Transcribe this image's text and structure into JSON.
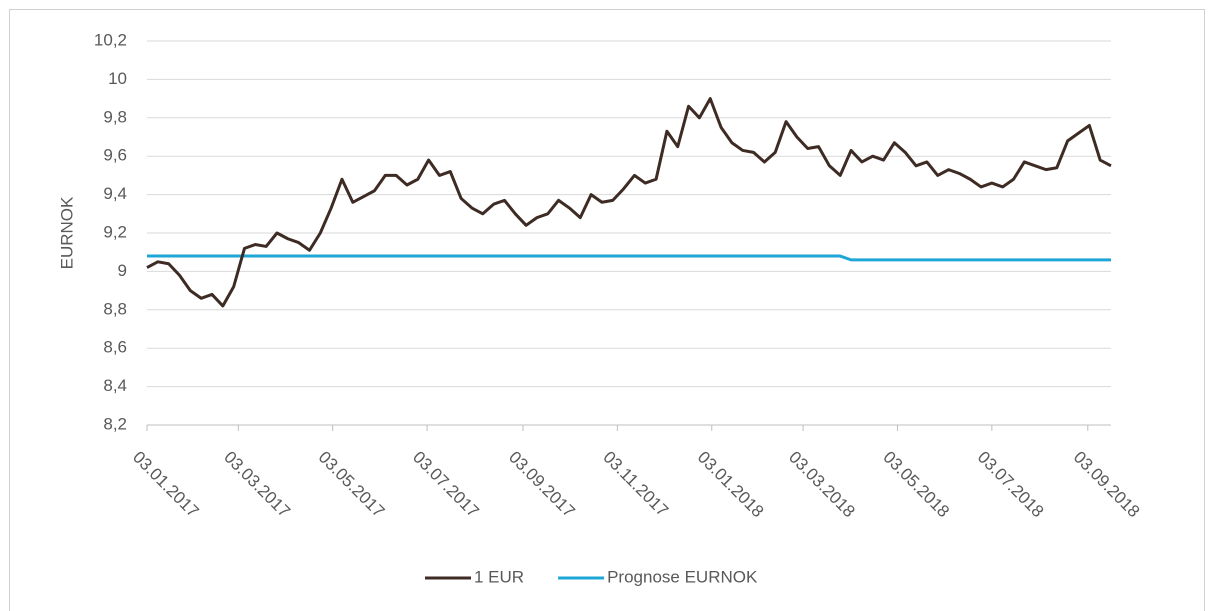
{
  "chart_data": {
    "type": "line",
    "y_label": "EURNOK",
    "x": [
      "2017-01-03",
      "2017-01-10",
      "2017-01-17",
      "2017-01-24",
      "2017-01-31",
      "2017-02-07",
      "2017-02-14",
      "2017-02-21",
      "2017-02-28",
      "2017-03-07",
      "2017-03-14",
      "2017-03-21",
      "2017-03-28",
      "2017-04-04",
      "2017-04-11",
      "2017-04-18",
      "2017-04-25",
      "2017-05-02",
      "2017-05-09",
      "2017-05-16",
      "2017-05-23",
      "2017-05-30",
      "2017-06-06",
      "2017-06-13",
      "2017-06-20",
      "2017-06-27",
      "2017-07-04",
      "2017-07-11",
      "2017-07-18",
      "2017-07-25",
      "2017-08-01",
      "2017-08-08",
      "2017-08-15",
      "2017-08-22",
      "2017-08-29",
      "2017-09-05",
      "2017-09-12",
      "2017-09-19",
      "2017-09-26",
      "2017-10-03",
      "2017-10-10",
      "2017-10-17",
      "2017-10-24",
      "2017-10-31",
      "2017-11-07",
      "2017-11-14",
      "2017-11-21",
      "2017-11-28",
      "2017-12-05",
      "2017-12-12",
      "2017-12-19",
      "2017-12-26",
      "2018-01-02",
      "2018-01-09",
      "2018-01-16",
      "2018-01-23",
      "2018-01-30",
      "2018-02-06",
      "2018-02-13",
      "2018-02-20",
      "2018-02-27",
      "2018-03-06",
      "2018-03-13",
      "2018-03-20",
      "2018-03-27",
      "2018-04-03",
      "2018-04-10",
      "2018-04-17",
      "2018-04-24",
      "2018-05-01",
      "2018-05-08",
      "2018-05-15",
      "2018-05-22",
      "2018-05-29",
      "2018-06-05",
      "2018-06-12",
      "2018-06-19",
      "2018-06-26",
      "2018-07-03",
      "2018-07-10",
      "2018-07-17",
      "2018-07-24",
      "2018-07-31",
      "2018-08-07",
      "2018-08-14",
      "2018-08-21",
      "2018-08-28",
      "2018-09-04",
      "2018-09-11",
      "2018-09-18"
    ],
    "series": [
      {
        "name": "1 EUR",
        "color": "#3d2b24",
        "values": [
          9.02,
          9.05,
          9.04,
          8.98,
          8.9,
          8.86,
          8.88,
          8.82,
          8.92,
          9.12,
          9.14,
          9.13,
          9.2,
          9.17,
          9.15,
          9.11,
          9.2,
          9.33,
          9.48,
          9.36,
          9.39,
          9.42,
          9.5,
          9.5,
          9.45,
          9.48,
          9.58,
          9.5,
          9.52,
          9.38,
          9.33,
          9.3,
          9.35,
          9.37,
          9.3,
          9.24,
          9.28,
          9.3,
          9.37,
          9.33,
          9.28,
          9.4,
          9.36,
          9.37,
          9.43,
          9.5,
          9.46,
          9.48,
          9.73,
          9.65,
          9.86,
          9.8,
          9.9,
          9.75,
          9.67,
          9.63,
          9.62,
          9.57,
          9.62,
          9.78,
          9.7,
          9.64,
          9.65,
          9.55,
          9.5,
          9.63,
          9.57,
          9.6,
          9.58,
          9.67,
          9.62,
          9.55,
          9.57,
          9.5,
          9.53,
          9.51,
          9.48,
          9.44,
          9.46,
          9.44,
          9.48,
          9.57,
          9.55,
          9.53,
          9.54,
          9.68,
          9.72,
          9.76,
          9.58,
          9.55
        ]
      },
      {
        "name": "Prognose EURNOK",
        "color": "#1ea7d6",
        "values": [
          9.08,
          9.08,
          9.08,
          9.08,
          9.08,
          9.08,
          9.08,
          9.08,
          9.08,
          9.08,
          9.08,
          9.08,
          9.08,
          9.08,
          9.08,
          9.08,
          9.08,
          9.08,
          9.08,
          9.08,
          9.08,
          9.08,
          9.08,
          9.08,
          9.08,
          9.08,
          9.08,
          9.08,
          9.08,
          9.08,
          9.08,
          9.08,
          9.08,
          9.08,
          9.08,
          9.08,
          9.08,
          9.08,
          9.08,
          9.08,
          9.08,
          9.08,
          9.08,
          9.08,
          9.08,
          9.08,
          9.08,
          9.08,
          9.08,
          9.08,
          9.08,
          9.08,
          9.08,
          9.08,
          9.08,
          9.08,
          9.08,
          9.08,
          9.08,
          9.08,
          9.08,
          9.08,
          9.08,
          9.08,
          9.08,
          9.06,
          9.06,
          9.06,
          9.06,
          9.06,
          9.06,
          9.06,
          9.06,
          9.06,
          9.06,
          9.06,
          9.06,
          9.06,
          9.06,
          9.06,
          9.06,
          9.06,
          9.06,
          9.06,
          9.06,
          9.06,
          9.06,
          9.06,
          9.06,
          9.06
        ]
      }
    ],
    "xlim": [
      "2017-01-03",
      "2018-09-18"
    ],
    "xticks": [
      {
        "value": "2017-01-03",
        "label": "03.01.2017"
      },
      {
        "value": "2017-03-03",
        "label": "03.03.2017"
      },
      {
        "value": "2017-05-03",
        "label": "03.05.2017"
      },
      {
        "value": "2017-07-03",
        "label": "03.07.2017"
      },
      {
        "value": "2017-09-03",
        "label": "03.09.2017"
      },
      {
        "value": "2017-11-03",
        "label": "03.11.2017"
      },
      {
        "value": "2018-01-03",
        "label": "03.01.2018"
      },
      {
        "value": "2018-03-03",
        "label": "03.03.2018"
      },
      {
        "value": "2018-05-03",
        "label": "03.05.2018"
      },
      {
        "value": "2018-07-03",
        "label": "03.07.2018"
      },
      {
        "value": "2018-09-03",
        "label": "03.09.2018"
      }
    ],
    "ylim": [
      8.2,
      10.2
    ],
    "yticks": [
      {
        "value": 8.2,
        "label": "8,2"
      },
      {
        "value": 8.4,
        "label": "8,4"
      },
      {
        "value": 8.6,
        "label": "8,6"
      },
      {
        "value": 8.8,
        "label": "8,8"
      },
      9,
      {
        "value": 9.2,
        "label": "9,2"
      },
      {
        "value": 9.4,
        "label": "9,4"
      },
      {
        "value": 9.6,
        "label": "9,6"
      },
      {
        "value": 9.8,
        "label": "9,8"
      },
      10,
      {
        "value": 10.2,
        "label": "10,2"
      }
    ],
    "grid": true,
    "legend": "bottom"
  }
}
